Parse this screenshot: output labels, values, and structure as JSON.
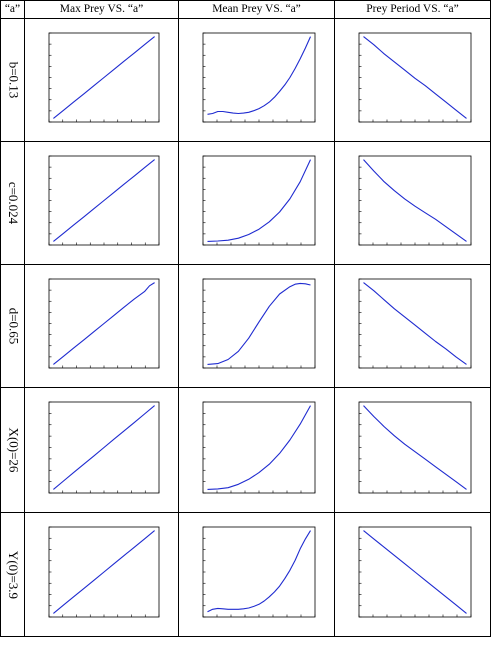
{
  "headers": {
    "corner": "“a”",
    "col1": "Max Prey VS. “a”",
    "col2": "Mean Prey VS. “a”",
    "col3": "Prey Period VS. “a”"
  },
  "rows": [
    {
      "label": "b=0.13"
    },
    {
      "label": "c=0.024"
    },
    {
      "label": "d=0.65"
    },
    {
      "label": "X(0)=26"
    },
    {
      "label": "Y(0)=3.9"
    }
  ],
  "chart_data": [
    {
      "type": "line",
      "row": 0,
      "col": 0,
      "x": [
        0,
        0.1,
        0.2,
        0.3,
        0.4,
        0.5,
        0.6,
        0.7,
        0.8,
        0.9,
        1
      ],
      "y": [
        0,
        0.1,
        0.2,
        0.3,
        0.4,
        0.5,
        0.6,
        0.7,
        0.8,
        0.9,
        1
      ]
    },
    {
      "type": "line",
      "row": 0,
      "col": 1,
      "x": [
        0,
        0.05,
        0.1,
        0.15,
        0.2,
        0.25,
        0.3,
        0.35,
        0.4,
        0.45,
        0.5,
        0.55,
        0.6,
        0.65,
        0.7,
        0.75,
        0.8,
        0.85,
        0.9,
        0.95,
        1
      ],
      "y": [
        0.05,
        0.06,
        0.085,
        0.085,
        0.075,
        0.065,
        0.06,
        0.065,
        0.075,
        0.095,
        0.12,
        0.155,
        0.2,
        0.26,
        0.33,
        0.41,
        0.5,
        0.61,
        0.73,
        0.86,
        1
      ]
    },
    {
      "type": "line",
      "row": 0,
      "col": 2,
      "x": [
        0,
        0.1,
        0.2,
        0.3,
        0.4,
        0.5,
        0.6,
        0.7,
        0.8,
        0.9,
        1
      ],
      "y": [
        1,
        0.9,
        0.79,
        0.69,
        0.59,
        0.49,
        0.4,
        0.3,
        0.2,
        0.1,
        0
      ]
    },
    {
      "type": "line",
      "row": 1,
      "col": 0,
      "x": [
        0,
        0.1,
        0.2,
        0.3,
        0.4,
        0.5,
        0.6,
        0.7,
        0.8,
        0.9,
        1
      ],
      "y": [
        0,
        0.1,
        0.2,
        0.3,
        0.4,
        0.5,
        0.6,
        0.7,
        0.8,
        0.9,
        1
      ]
    },
    {
      "type": "line",
      "row": 1,
      "col": 1,
      "x": [
        0,
        0.1,
        0.2,
        0.3,
        0.4,
        0.5,
        0.6,
        0.7,
        0.8,
        0.9,
        1
      ],
      "y": [
        0,
        0.005,
        0.015,
        0.04,
        0.085,
        0.15,
        0.24,
        0.36,
        0.52,
        0.73,
        1
      ]
    },
    {
      "type": "line",
      "row": 1,
      "col": 2,
      "x": [
        0,
        0.1,
        0.2,
        0.3,
        0.4,
        0.5,
        0.6,
        0.7,
        0.8,
        0.9,
        1
      ],
      "y": [
        1,
        0.86,
        0.73,
        0.62,
        0.52,
        0.43,
        0.35,
        0.27,
        0.18,
        0.09,
        0
      ]
    },
    {
      "type": "line",
      "row": 2,
      "col": 0,
      "x": [
        0,
        0.1,
        0.2,
        0.3,
        0.4,
        0.5,
        0.6,
        0.7,
        0.8,
        0.9,
        0.95,
        1
      ],
      "y": [
        0,
        0.1,
        0.2,
        0.3,
        0.4,
        0.5,
        0.6,
        0.7,
        0.8,
        0.89,
        0.96,
        1
      ]
    },
    {
      "type": "line",
      "row": 2,
      "col": 1,
      "x": [
        0,
        0.1,
        0.2,
        0.3,
        0.4,
        0.5,
        0.6,
        0.7,
        0.8,
        0.85,
        0.9,
        0.95,
        1
      ],
      "y": [
        0,
        0.01,
        0.06,
        0.16,
        0.32,
        0.52,
        0.71,
        0.86,
        0.95,
        0.98,
        0.99,
        0.985,
        0.97
      ]
    },
    {
      "type": "line",
      "row": 2,
      "col": 2,
      "x": [
        0,
        0.1,
        0.2,
        0.3,
        0.4,
        0.5,
        0.6,
        0.7,
        0.8,
        0.9,
        1
      ],
      "y": [
        1,
        0.9,
        0.79,
        0.68,
        0.58,
        0.48,
        0.38,
        0.28,
        0.19,
        0.09,
        0
      ]
    },
    {
      "type": "line",
      "row": 3,
      "col": 0,
      "x": [
        0,
        0.1,
        0.2,
        0.3,
        0.4,
        0.5,
        0.6,
        0.7,
        0.8,
        0.9,
        1
      ],
      "y": [
        0,
        0.1,
        0.2,
        0.3,
        0.4,
        0.5,
        0.6,
        0.7,
        0.8,
        0.9,
        1
      ]
    },
    {
      "type": "line",
      "row": 3,
      "col": 1,
      "x": [
        0,
        0.1,
        0.2,
        0.3,
        0.4,
        0.5,
        0.6,
        0.7,
        0.8,
        0.9,
        1
      ],
      "y": [
        0,
        0.005,
        0.02,
        0.06,
        0.12,
        0.2,
        0.3,
        0.43,
        0.59,
        0.78,
        1
      ]
    },
    {
      "type": "line",
      "row": 3,
      "col": 2,
      "x": [
        0,
        0.1,
        0.2,
        0.3,
        0.4,
        0.5,
        0.6,
        0.7,
        0.8,
        0.9,
        1
      ],
      "y": [
        1,
        0.87,
        0.75,
        0.64,
        0.54,
        0.45,
        0.36,
        0.27,
        0.18,
        0.09,
        0
      ]
    },
    {
      "type": "line",
      "row": 4,
      "col": 0,
      "x": [
        0,
        0.1,
        0.2,
        0.3,
        0.4,
        0.5,
        0.6,
        0.7,
        0.8,
        0.9,
        1
      ],
      "y": [
        0,
        0.1,
        0.2,
        0.3,
        0.4,
        0.5,
        0.6,
        0.7,
        0.8,
        0.9,
        1
      ]
    },
    {
      "type": "line",
      "row": 4,
      "col": 1,
      "x": [
        0,
        0.05,
        0.1,
        0.15,
        0.2,
        0.25,
        0.3,
        0.35,
        0.4,
        0.45,
        0.5,
        0.55,
        0.6,
        0.65,
        0.7,
        0.75,
        0.8,
        0.85,
        0.9,
        0.95,
        1
      ],
      "y": [
        0.02,
        0.05,
        0.06,
        0.055,
        0.05,
        0.05,
        0.05,
        0.055,
        0.065,
        0.085,
        0.11,
        0.15,
        0.2,
        0.26,
        0.33,
        0.42,
        0.52,
        0.64,
        0.78,
        0.9,
        1
      ]
    },
    {
      "type": "line",
      "row": 4,
      "col": 2,
      "x": [
        0,
        0.1,
        0.2,
        0.3,
        0.4,
        0.5,
        0.6,
        0.7,
        0.8,
        0.9,
        1
      ],
      "y": [
        1,
        0.9,
        0.8,
        0.7,
        0.6,
        0.5,
        0.4,
        0.3,
        0.2,
        0.1,
        0
      ]
    }
  ]
}
